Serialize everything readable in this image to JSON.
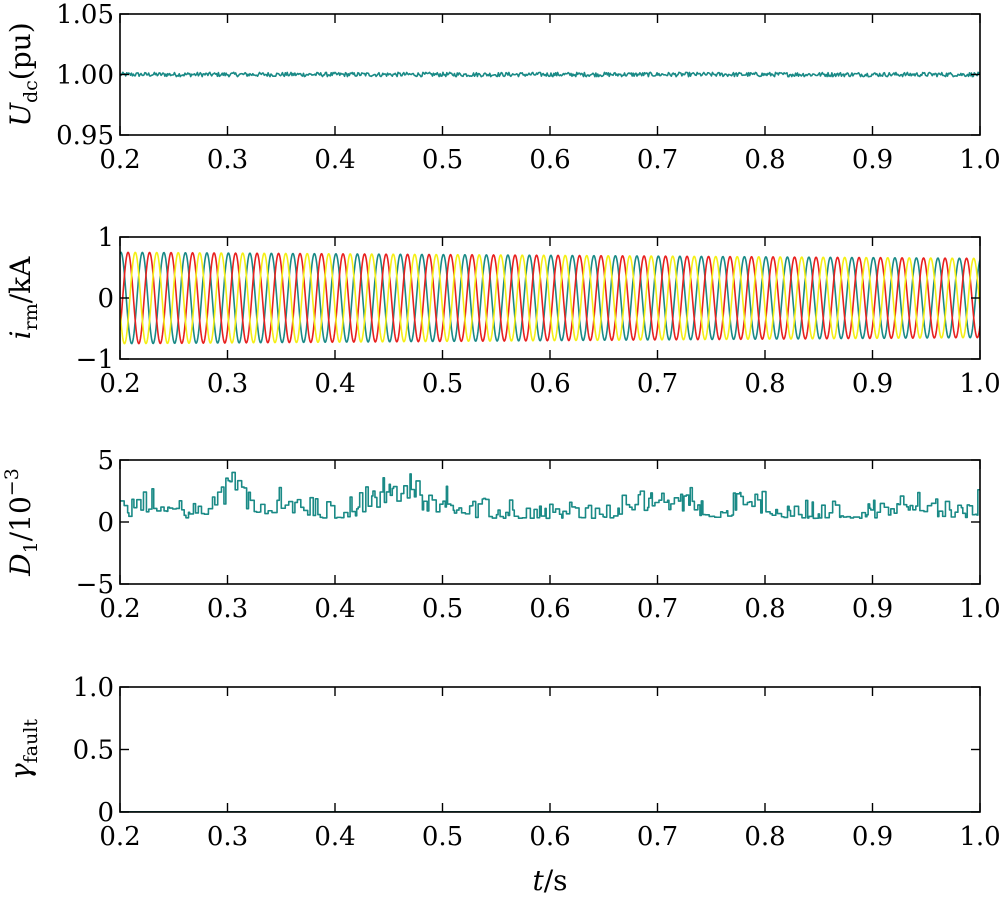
{
  "chart_data": [
    {
      "type": "line",
      "ylabel_main": "U",
      "ylabel_sub": "dc",
      "ylabel_suffix": "(pu)",
      "xlim": [
        0.2,
        1.0
      ],
      "ylim": [
        0.95,
        1.05
      ],
      "x_ticks": [
        "0.2",
        "0.3",
        "0.4",
        "0.5",
        "0.6",
        "0.7",
        "0.8",
        "0.9",
        "1.0"
      ],
      "y_ticks": [
        {
          "value": 0.95,
          "label": "0.95"
        },
        {
          "value": 1.0,
          "label": "1.00"
        },
        {
          "value": 1.05,
          "label": "1.05"
        }
      ],
      "series": [
        {
          "color": "#1a8a86",
          "base": 1.0,
          "noise": 0.0018
        }
      ]
    },
    {
      "type": "line",
      "ylabel_main": "i",
      "ylabel_sub": "rm",
      "ylabel_suffix": "/kA",
      "xlim": [
        0.2,
        1.0
      ],
      "ylim": [
        -1,
        1
      ],
      "x_ticks": [
        "0.2",
        "0.3",
        "0.4",
        "0.5",
        "0.6",
        "0.7",
        "0.8",
        "0.9",
        "1.0"
      ],
      "y_ticks": [
        {
          "value": -1,
          "label": "−1"
        },
        {
          "value": 0,
          "label": "0"
        },
        {
          "value": 1,
          "label": "1"
        }
      ],
      "series": [
        {
          "color": "#1a8a86",
          "amplitude_start": 0.75,
          "amplitude_end": 0.65,
          "frequency_hz": 50,
          "phase_deg": 75
        },
        {
          "color": "#e8211f",
          "amplitude_start": 0.75,
          "amplitude_end": 0.65,
          "frequency_hz": 50,
          "phase_deg": -45
        },
        {
          "color": "#f5ef16",
          "amplitude_start": 0.75,
          "amplitude_end": 0.65,
          "frequency_hz": 50,
          "phase_deg": 195
        }
      ]
    },
    {
      "type": "line",
      "ylabel_main": "D",
      "ylabel_sub": "1",
      "ylabel_suffix": "/10",
      "ylabel_sup": "−3",
      "xlim": [
        0.2,
        1.0
      ],
      "ylim": [
        -5,
        5
      ],
      "x_ticks": [
        "0.2",
        "0.3",
        "0.4",
        "0.5",
        "0.6",
        "0.7",
        "0.8",
        "0.9",
        "1.0"
      ],
      "y_ticks": [
        {
          "value": -5,
          "label": "−5"
        },
        {
          "value": 0,
          "label": "0"
        },
        {
          "value": 5,
          "label": "5"
        }
      ],
      "series": [
        {
          "color": "#1a8a86",
          "base": 0.3,
          "max": 4.0,
          "step_s": 0.002
        }
      ]
    },
    {
      "type": "line",
      "ylabel_main": "γ",
      "ylabel_sub": "fault",
      "xlim": [
        0.2,
        1.0
      ],
      "ylim": [
        0,
        1.0
      ],
      "x_ticks": [
        "0.2",
        "0.3",
        "0.4",
        "0.5",
        "0.6",
        "0.7",
        "0.8",
        "0.9",
        "1.0"
      ],
      "y_ticks": [
        {
          "value": 0,
          "label": "0"
        },
        {
          "value": 0.5,
          "label": "0.5"
        },
        {
          "value": 1.0,
          "label": "1.0"
        }
      ],
      "series": [
        {
          "color": "#1a8a86",
          "x": [
            0.2,
            1.0
          ],
          "y": [
            0,
            0
          ]
        }
      ]
    }
  ],
  "xlabel_main": "t",
  "xlabel_suffix": "/s"
}
